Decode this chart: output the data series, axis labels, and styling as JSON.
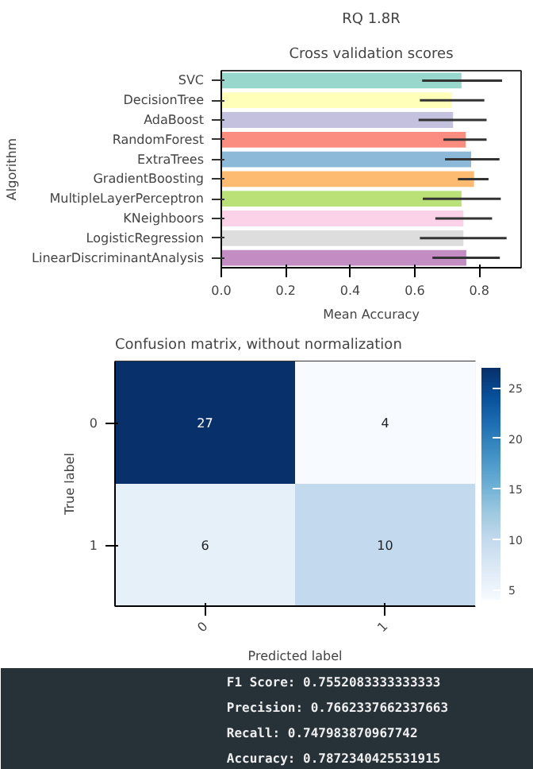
{
  "chart_data": [
    {
      "type": "bar",
      "orientation": "horizontal",
      "title": "RQ 1.8R",
      "subtitle": "Cross validation scores",
      "xlabel": "Mean Accuracy",
      "ylabel": "Algorithm",
      "categories": [
        "SVC",
        "DecisionTree",
        "AdaBoost",
        "RandomForest",
        "ExtraTrees",
        "GradientBoosting",
        "MultipleLayerPerceptron",
        "KNeighboors",
        "LogisticRegression",
        "LinearDiscriminantAnalysis"
      ],
      "values": [
        0.745,
        0.714,
        0.719,
        0.758,
        0.775,
        0.784,
        0.745,
        0.751,
        0.751,
        0.76
      ],
      "colors": [
        "#8dd3c7",
        "#ffffb3",
        "#bebada",
        "#fb8072",
        "#80b1d3",
        "#fdb462",
        "#b3de69",
        "#fccde5",
        "#d9d9d9",
        "#bc80bd"
      ],
      "errors": [
        [
          0.623,
          0.871
        ],
        [
          0.616,
          0.816
        ],
        [
          0.612,
          0.823
        ],
        [
          0.689,
          0.823
        ],
        [
          0.694,
          0.863
        ],
        [
          0.734,
          0.829
        ],
        [
          0.625,
          0.867
        ],
        [
          0.664,
          0.84
        ],
        [
          0.616,
          0.885
        ],
        [
          0.655,
          0.864
        ]
      ],
      "xlim": [
        0,
        0.93
      ],
      "xticks": [
        {
          "value": 0,
          "label": "0.0"
        },
        0.2,
        0.4,
        0.6,
        0.8
      ]
    },
    {
      "type": "heatmap",
      "title": "Confusion matrix, without normalization",
      "xlabel": "Predicted label",
      "ylabel": "True label",
      "categories": [
        "0",
        "1"
      ],
      "y_categories": [
        "0",
        "1"
      ],
      "cells": [
        [
          27,
          4
        ],
        [
          6,
          10
        ]
      ],
      "data_labels": true,
      "clim": [
        4,
        27
      ],
      "cticks": [
        5,
        10,
        15,
        20,
        25
      ]
    },
    {
      "type": "other",
      "annotations": [
        "F1 Score: 0.7552083333333333",
        "Precision: 0.7662337662337663",
        "Recall: 0.747983870967742",
        "Accuracy: 0.7872340425531915"
      ]
    }
  ]
}
